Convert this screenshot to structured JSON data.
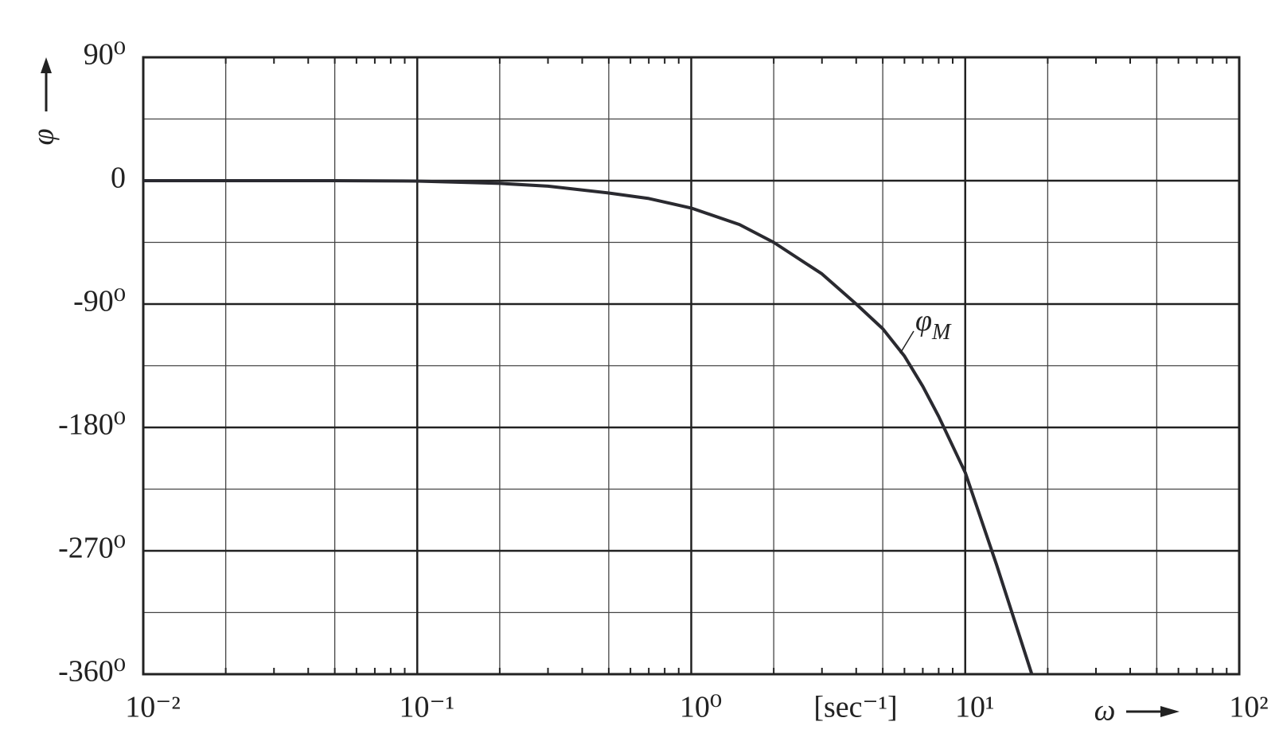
{
  "chart_data": {
    "type": "line",
    "x_label": "ω",
    "y_label": "φ",
    "x_unit": "[sec⁻¹]",
    "annotation": {
      "text": "φ",
      "subscript": "M"
    },
    "xscale": "log",
    "grid": true,
    "x": [
      0.01,
      0.05,
      0.1,
      0.2,
      0.3,
      0.5,
      0.7,
      1,
      1.5,
      2,
      3,
      4,
      5,
      6,
      7,
      8,
      10,
      13,
      17.5
    ],
    "series": [
      {
        "color": "#2a2a30",
        "values": [
          0,
          0,
          -0.3,
          -2,
          -4,
          -9,
          -13,
          -20,
          -32,
          -45,
          -68,
          -90,
          -108,
          -128,
          -150,
          -172,
          -213,
          -280,
          -360
        ]
      }
    ],
    "xlim": [
      0.01,
      100
    ],
    "ylim": [
      -360,
      90
    ],
    "xticks": [
      {
        "value": 0.01,
        "label": "10⁻²"
      },
      {
        "value": 0.1,
        "label": "10⁻¹"
      },
      {
        "value": 1,
        "label": "10⁰"
      },
      {
        "value": 10,
        "label": "10¹"
      },
      {
        "value": 100,
        "label": "10²"
      }
    ],
    "yticks": [
      {
        "value": 90,
        "label": "90⁰"
      },
      0,
      {
        "value": -90,
        "label": "-90⁰"
      },
      {
        "value": -180,
        "label": "-180⁰"
      },
      {
        "value": -270,
        "label": "-270⁰"
      },
      {
        "value": -360,
        "label": "-360⁰"
      }
    ],
    "x_minor_grid": [
      0.02,
      0.05,
      0.2,
      0.5,
      2,
      5,
      20,
      50
    ],
    "y_minor_grid": [
      45,
      -45,
      -135,
      -225,
      -315
    ]
  }
}
